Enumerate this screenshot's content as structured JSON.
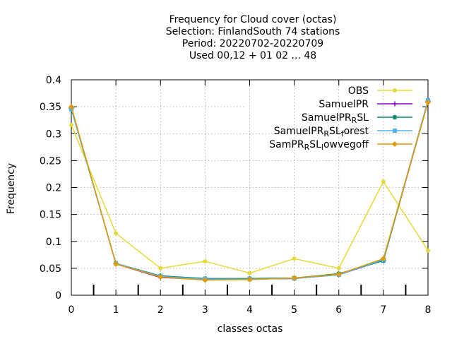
{
  "chart_data": {
    "type": "line",
    "title_lines": [
      "Frequency  for Cloud cover (octas)",
      "Selection: FinlandSouth     74 stations",
      "Period: 20220702-20220709",
      "Used  00,12  + 01 02 ... 48"
    ],
    "xlabel": "classes octas",
    "ylabel": "Frequency",
    "xlim": [
      0,
      8
    ],
    "ylim": [
      0,
      0.4
    ],
    "x_ticks": [
      "0",
      "1",
      "2",
      "3",
      "4",
      "5",
      "6",
      "7",
      "8"
    ],
    "y_ticks": [
      "0",
      "0.05",
      "0.1",
      "0.15",
      "0.2",
      "0.25",
      "0.3",
      "0.35",
      "0.4"
    ],
    "grid": true,
    "legend_position": "top-right",
    "x": [
      0,
      1,
      2,
      3,
      4,
      5,
      6,
      7,
      8
    ],
    "series": [
      {
        "name": "OBS",
        "color": "#e8d93a",
        "marker": "circle",
        "values": [
          0.316,
          0.115,
          0.05,
          0.063,
          0.041,
          0.068,
          0.05,
          0.211,
          0.083
        ]
      },
      {
        "name": "SamuelPR",
        "color": "#8a00c8",
        "marker": "plus",
        "values": [
          0.348,
          0.058,
          0.033,
          0.029,
          0.03,
          0.031,
          0.038,
          0.065,
          0.359
        ]
      },
      {
        "name": "SamuelPR_RSL",
        "color": "#00866b",
        "marker": "star",
        "values": [
          0.346,
          0.059,
          0.036,
          0.031,
          0.031,
          0.032,
          0.04,
          0.064,
          0.361
        ]
      },
      {
        "name": "SamuelPR_RSL_forest",
        "color": "#55b4e6",
        "marker": "box",
        "values": [
          0.345,
          0.059,
          0.035,
          0.03,
          0.03,
          0.031,
          0.038,
          0.066,
          0.362
        ]
      },
      {
        "name": "SamPR_RSL_lowvegoff",
        "color": "#e09b00",
        "marker": "diamond",
        "values": [
          0.35,
          0.058,
          0.034,
          0.028,
          0.029,
          0.032,
          0.039,
          0.068,
          0.358
        ]
      }
    ],
    "legend_labels": [
      {
        "main": "OBS"
      },
      {
        "main": "SamuelPR"
      },
      {
        "main": "SamuelPR",
        "sub": "R",
        "tail": "SL"
      },
      {
        "main": "SamuelPR",
        "sub": "R",
        "tail": "SL",
        "sub2": "f",
        "tail2": "orest"
      },
      {
        "main": "SamPR",
        "sub": "R",
        "tail": "SL",
        "sub2": "l",
        "tail2": "owvegoff"
      }
    ]
  }
}
